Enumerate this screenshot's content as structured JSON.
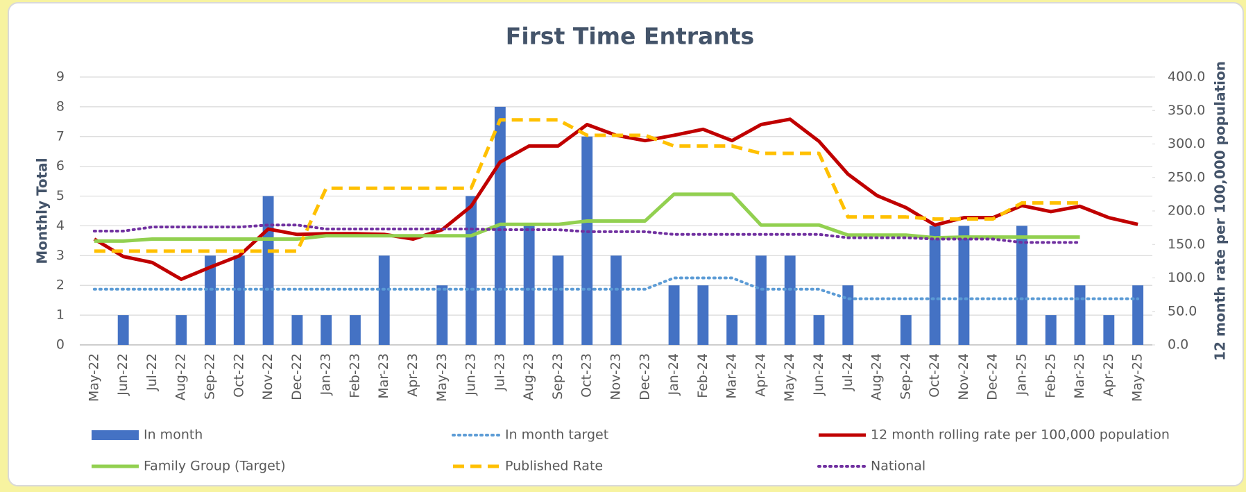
{
  "chart_data": {
    "type": "combo",
    "title": "First Time Entrants",
    "y_label": "Monthly Total",
    "y2_label": "12 month rate per 100,000 population",
    "categories": [
      "May-22",
      "Jun-22",
      "Jul-22",
      "Aug-22",
      "Sep-22",
      "Oct-22",
      "Nov-22",
      "Dec-22",
      "Jan-23",
      "Feb-23",
      "Mar-23",
      "Apr-23",
      "May-23",
      "Jun-23",
      "Jul-23",
      "Aug-23",
      "Sep-23",
      "Oct-23",
      "Nov-23",
      "Dec-23",
      "Jan-24",
      "Feb-24",
      "Mar-24",
      "Apr-24",
      "May-24",
      "Jun-24",
      "Jul-24",
      "Aug-24",
      "Sep-24",
      "Oct-24",
      "Nov-24",
      "Dec-24",
      "Jan-25",
      "Feb-25",
      "Mar-25",
      "Apr-25",
      "May-25"
    ],
    "ylim": [
      0,
      9
    ],
    "yticks": [
      0,
      1,
      2,
      3,
      4,
      5,
      6,
      7,
      8,
      9
    ],
    "y2lim": [
      0,
      400
    ],
    "y2ticks": [
      {
        "value": 0,
        "label": "0.0"
      },
      {
        "value": 50,
        "label": "50.0"
      },
      {
        "value": 100,
        "label": "100.0"
      },
      {
        "value": 150,
        "label": "150.0"
      },
      {
        "value": 200,
        "label": "200.0"
      },
      {
        "value": 250,
        "label": "250.0"
      },
      {
        "value": 300,
        "label": "300.0"
      },
      {
        "value": 350,
        "label": "350.0"
      },
      {
        "value": 400,
        "label": "400.0"
      }
    ],
    "grid": true,
    "series": [
      {
        "name": "In month",
        "type": "bar",
        "color": "#4472c4",
        "values": [
          0,
          1,
          0,
          1,
          3,
          3,
          5,
          1,
          1,
          1,
          3,
          0,
          2,
          5,
          8,
          4,
          3,
          7,
          3,
          0,
          2,
          2,
          1,
          3,
          3,
          1,
          2,
          0,
          1,
          4,
          4,
          0,
          4,
          1,
          2,
          1,
          2
        ]
      },
      {
        "name": "In month target",
        "type": "line",
        "dash": "dotted",
        "color": "#5b9bd5",
        "values": [
          1.87,
          1.87,
          1.87,
          1.87,
          1.87,
          1.87,
          1.87,
          1.87,
          1.87,
          1.87,
          1.87,
          1.87,
          1.87,
          1.87,
          1.87,
          1.87,
          1.87,
          1.87,
          1.87,
          1.87,
          2.25,
          2.25,
          2.25,
          1.87,
          1.87,
          1.87,
          1.55,
          1.55,
          1.55,
          1.55,
          1.55,
          1.55,
          1.55,
          1.55,
          1.55,
          1.55,
          1.55
        ]
      },
      {
        "name": "12 month rolling rate per 100,000 population",
        "type": "line",
        "dash": "solid",
        "axis": "y2",
        "color": "#c00000",
        "values": [
          158,
          132,
          123,
          98,
          116,
          133,
          173,
          165,
          166,
          166,
          165,
          158,
          172,
          207,
          273,
          297,
          297,
          329,
          313,
          305,
          313,
          322,
          305,
          329,
          337,
          304,
          255,
          223,
          205,
          179,
          190,
          190,
          208,
          199,
          207,
          190,
          180
        ]
      },
      {
        "name": "Family Group (Target)",
        "type": "line",
        "dash": "solid",
        "axis": "y2",
        "color": "#92d050",
        "values": [
          155,
          155,
          158,
          158,
          158,
          158,
          158,
          158,
          163,
          163,
          163,
          163,
          163,
          163,
          180,
          180,
          180,
          185,
          185,
          185,
          225,
          225,
          225,
          179,
          179,
          179,
          164,
          164,
          164,
          160,
          161,
          161,
          161,
          161,
          161,
          null,
          null
        ]
      },
      {
        "name": "Published Rate",
        "type": "line",
        "dash": "dashed",
        "axis": "y2",
        "color": "#ffc000",
        "values": [
          140,
          140,
          140,
          140,
          140,
          140,
          140,
          140,
          234,
          234,
          234,
          234,
          234,
          234,
          336,
          336,
          336,
          313,
          313,
          313,
          297,
          297,
          297,
          286,
          286,
          286,
          191,
          191,
          191,
          188,
          188,
          188,
          212,
          212,
          212,
          null,
          null
        ]
      },
      {
        "name": "National",
        "type": "line",
        "dash": "dotted",
        "axis": "y2",
        "color": "#7030a0",
        "values": [
          170,
          170,
          176,
          176,
          176,
          176,
          179,
          179,
          173,
          173,
          173,
          173,
          173,
          173,
          172,
          172,
          172,
          169,
          169,
          169,
          165,
          165,
          165,
          165,
          165,
          165,
          160,
          160,
          160,
          158,
          158,
          158,
          153,
          153,
          153,
          null,
          null
        ]
      }
    ]
  }
}
